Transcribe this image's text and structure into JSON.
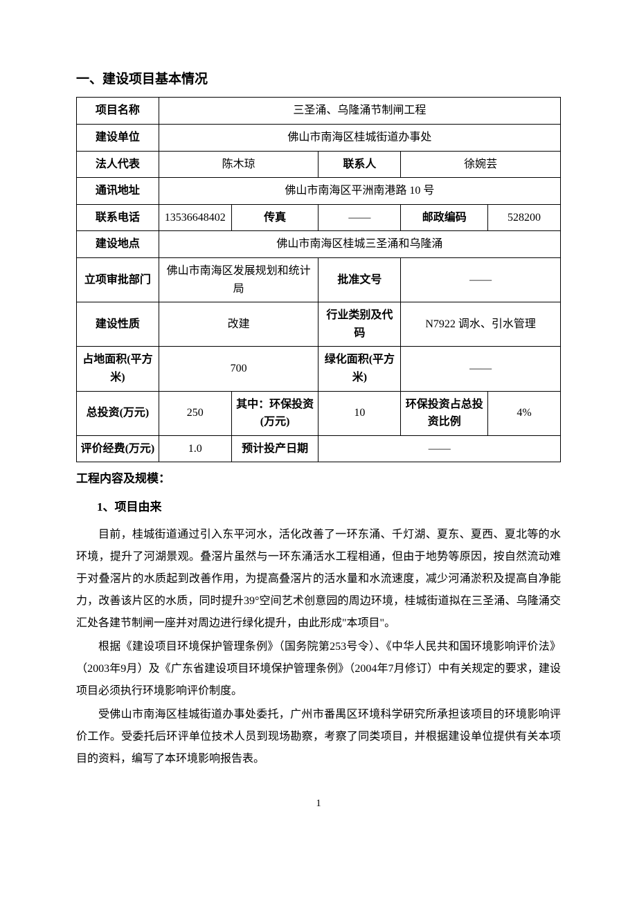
{
  "sectionTitle": "一、建设项目基本情况",
  "table": {
    "r1": {
      "k": "项目名称",
      "v": "三圣涌、乌隆涌节制闸工程"
    },
    "r2": {
      "k": "建设单位",
      "v": "佛山市南海区桂城街道办事处"
    },
    "r3": {
      "k1": "法人代表",
      "v1": "陈木琼",
      "k2": "联系人",
      "v2": "徐婉芸"
    },
    "r4": {
      "k": "通讯地址",
      "v": "佛山市南海区平洲南港路 10 号"
    },
    "r5": {
      "k1": "联系电话",
      "v1": "13536648402",
      "k2": "传真",
      "v2": "——",
      "k3": "邮政编码",
      "v3": "528200"
    },
    "r6": {
      "k": "建设地点",
      "v": "佛山市南海区桂城三圣涌和乌隆涌"
    },
    "r7": {
      "k1": "立项审批部门",
      "v1": "佛山市南海区发展规划和统计局",
      "k2": "批准文号",
      "v2": "——"
    },
    "r8": {
      "k1": "建设性质",
      "v1": "改建",
      "k2": "行业类别及代码",
      "v2": "N7922 调水、引水管理"
    },
    "r9": {
      "k1": "占地面积(平方米)",
      "v1": "700",
      "k2": "绿化面积(平方米)",
      "v2": "——"
    },
    "r10": {
      "k1": "总投资(万元)",
      "v1": "250",
      "k2": "其中：环保投资(万元)",
      "v2": "10",
      "k3": "环保投资占总投资比例",
      "v3": "4%"
    },
    "r11": {
      "k1": "评价经费(万元)",
      "v1": "1.0",
      "k2": "预计投产日期",
      "v2": "——"
    }
  },
  "subtitle": "工程内容及规模：",
  "itemTitle": "1、项目由来",
  "para1": "目前，桂城街道通过引入东平河水，活化改善了一环东涌、千灯湖、夏东、夏西、夏北等的水环境，提升了河湖景观。叠滘片虽然与一环东涌活水工程相通，但由于地势等原因，按自然流动难于对叠滘片的水质起到改善作用，为提高叠滘片的活水量和水流速度，减少河涌淤积及提高自净能力，改善该片区的水质，同时提升39°空间艺术创意园的周边环境，桂城街道拟在三圣涌、乌隆涌交汇处各建节制闸一座并对周边进行绿化提升，由此形成\"本项目\"。",
  "para2": "根据《建设项目环境保护管理条例》（国务院第253号令）、《中华人民共和国环境影响评价法》（2003年9月）及《广东省建设项目环境保护管理条例》（2004年7月修订）中有关规定的要求，建设项目必须执行环境影响评价制度。",
  "para3": "受佛山市南海区桂城街道办事处委托，广州市番禺区环境科学研究所承担该项目的环境影响评价工作。受委托后环评单位技术人员到现场勘察，考察了同类项目，并根据建设单位提供有关本项目的资料，编写了本环境影响报告表。",
  "pageNum": "1",
  "colWidths": [
    "17%",
    "15%",
    "18%",
    "8%",
    "9%",
    "18%",
    "15%"
  ]
}
